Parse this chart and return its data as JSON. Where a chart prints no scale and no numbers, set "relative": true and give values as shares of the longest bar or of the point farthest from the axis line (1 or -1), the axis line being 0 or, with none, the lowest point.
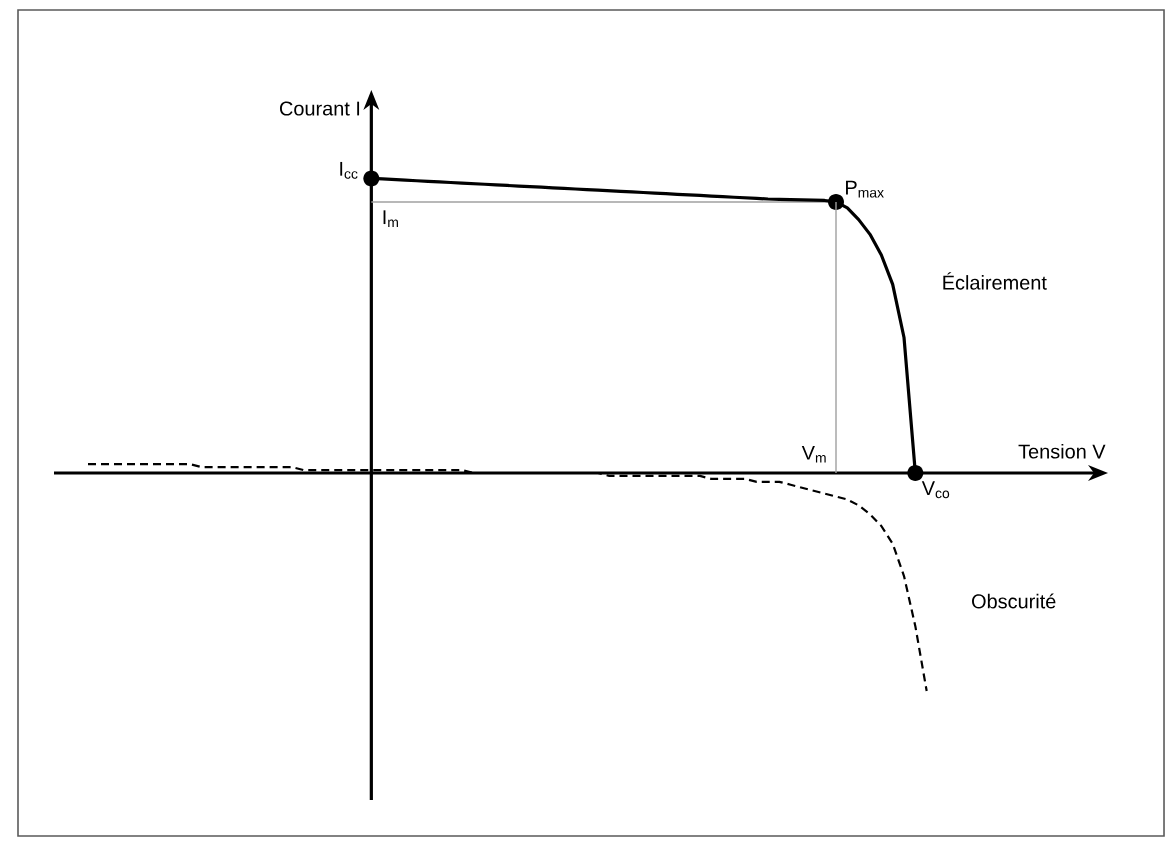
{
  "chart_data": {
    "type": "line",
    "relative": true,
    "xlabel": "Tension V",
    "ylabel": "Courant I",
    "categories": [
      null,
      null,
      null,
      null,
      null,
      null,
      null,
      null,
      null,
      null,
      null,
      null,
      null,
      null,
      null,
      null,
      null,
      null,
      null,
      null,
      null,
      null,
      null,
      null,
      null,
      null,
      null,
      null,
      null,
      null,
      null,
      null,
      null,
      null,
      null,
      null,
      null,
      null,
      null,
      null,
      null,
      null,
      null,
      null,
      null,
      null,
      null,
      null,
      null,
      null,
      null,
      null,
      null,
      null,
      null,
      null,
      null,
      null,
      null,
      null,
      null,
      null,
      null,
      null,
      null,
      null,
      null,
      null,
      null,
      null,
      null,
      null,
      null,
      null,
      null,
      null,
      null,
      null,
      null,
      null,
      null,
      null,
      null,
      null,
      null,
      null,
      null,
      null,
      null,
      null,
      null,
      null,
      null,
      null
    ],
    "series": [
      {
        "name": "Éclairement",
        "color": "#000000",
        "line_style": "solid",
        "values": [
          null,
          null,
          null,
          null,
          null,
          null,
          null,
          null,
          null,
          null,
          null,
          null,
          null,
          null,
          null,
          null,
          null,
          null,
          null,
          null,
          null,
          null,
          null,
          null,
          null,
          null,
          null,
          null,
          1.0,
          0.998,
          0.996,
          0.994,
          0.992,
          0.99,
          0.988,
          0.986,
          0.984,
          0.982,
          0.98,
          0.978,
          0.976,
          0.974,
          0.972,
          0.97,
          0.968,
          0.966,
          0.964,
          0.962,
          0.96,
          0.958,
          0.956,
          0.954,
          0.952,
          0.95,
          0.948,
          0.946,
          0.944,
          0.942,
          0.94,
          0.938,
          0.936,
          0.934,
          0.932,
          0.93,
          0.929,
          0.928,
          0.927,
          0.926,
          0.925,
          0.92,
          0.9,
          0.86,
          0.81,
          0.74,
          0.64,
          0.46,
          0,
          null,
          null,
          null,
          null,
          null,
          null,
          null,
          null,
          null,
          null,
          null,
          null,
          null,
          null,
          null,
          null,
          null
        ]
      },
      {
        "name": "Obscurité",
        "color": "#000000",
        "line_style": "dashed",
        "values": [
          null,
          null,
          null,
          0.03,
          0.03,
          0.03,
          0.03,
          0.03,
          0.03,
          0.03,
          0.03,
          0.03,
          0.03,
          0.02,
          0.02,
          0.02,
          0.02,
          0.02,
          0.02,
          0.02,
          0.02,
          0.02,
          0.01,
          0.01,
          0.01,
          0.01,
          0.01,
          0.01,
          0.01,
          0.01,
          0.01,
          0.01,
          0.01,
          0.01,
          0.01,
          0.01,
          0.01,
          0,
          0,
          0,
          0,
          0,
          0,
          0,
          0,
          0,
          0,
          0,
          0,
          -0.01,
          -0.01,
          -0.01,
          -0.01,
          -0.01,
          -0.01,
          -0.01,
          -0.01,
          -0.01,
          -0.02,
          -0.02,
          -0.02,
          -0.02,
          -0.03,
          -0.03,
          -0.03,
          -0.04,
          -0.05,
          -0.06,
          -0.07,
          -0.08,
          -0.09,
          -0.11,
          -0.14,
          -0.18,
          -0.24,
          -0.35,
          -0.52,
          -0.74,
          null,
          null,
          null,
          null,
          null,
          null,
          null,
          null,
          null,
          null,
          null,
          null,
          null,
          null,
          null,
          null
        ]
      }
    ],
    "ref_lines": [
      {
        "axis": "y",
        "value": 0.92,
        "label": "I$_{m}$",
        "color": "#a0a0a0"
      }
    ],
    "annotations": [
      "I$_{cc}$",
      "P$_{max}$",
      "V$_{co}$",
      "V$_{m}$"
    ]
  }
}
